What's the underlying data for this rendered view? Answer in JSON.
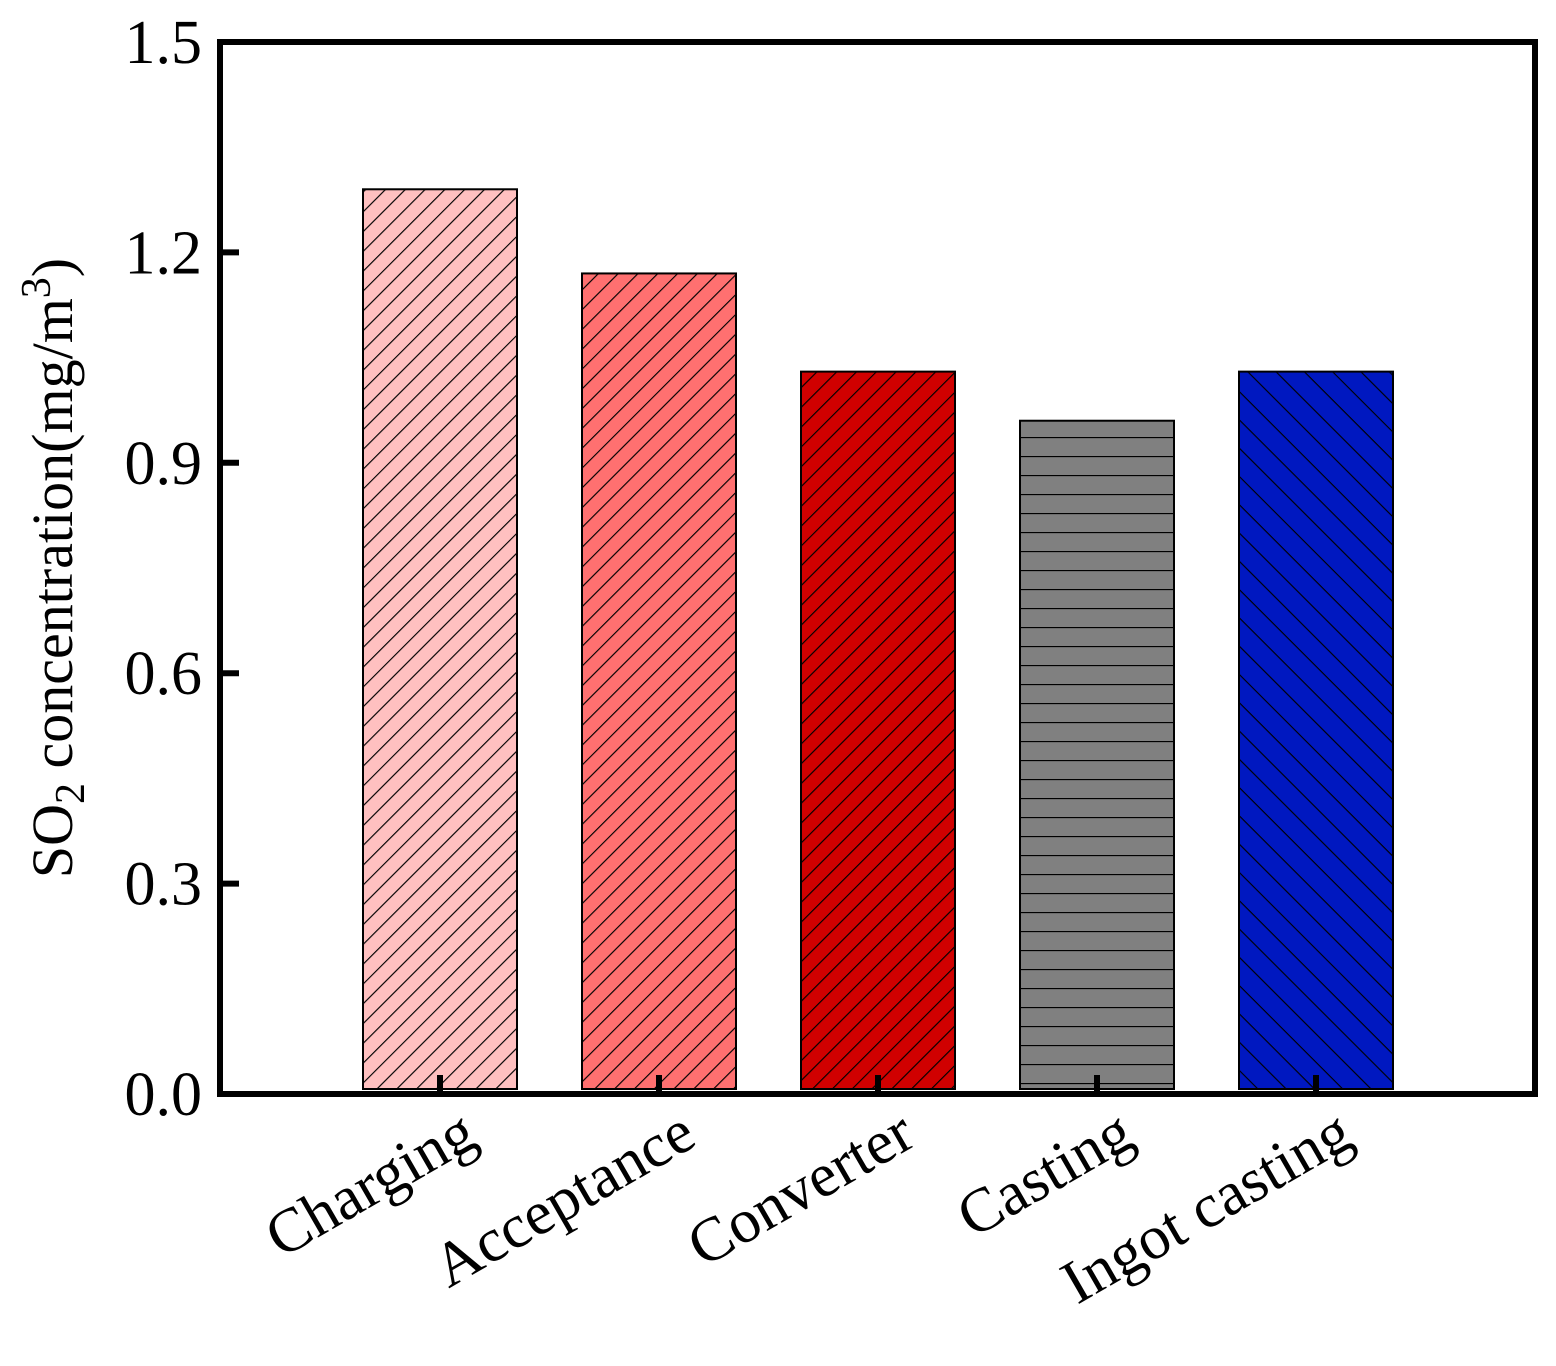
{
  "chart_data": {
    "type": "bar",
    "title": "",
    "xlabel": "",
    "ylabel": {
      "main": "SO",
      "sub": "2",
      "rest": " concentration(mg/m",
      "sup": "3",
      "close": ")"
    },
    "ylim": [
      0,
      1.5
    ],
    "yticks": [
      0.0,
      0.3,
      0.6,
      0.9,
      1.2,
      1.5
    ],
    "ytick_labels": [
      "0.0",
      "0.3",
      "0.6",
      "0.9",
      "1.2",
      "1.5"
    ],
    "categories": [
      "Charging",
      "Acceptance",
      "Converter",
      "Casting",
      "Ingot casting"
    ],
    "values": [
      1.29,
      1.17,
      1.03,
      0.96,
      1.03
    ],
    "colors": [
      "#FFC0C0",
      "#FF7070",
      "#D00000",
      "#808080",
      "#0018C0"
    ],
    "patterns": [
      "diag-up",
      "diag-up",
      "diag-up",
      "horizontal",
      "diag-down"
    ],
    "grid": false,
    "legend": "none"
  }
}
